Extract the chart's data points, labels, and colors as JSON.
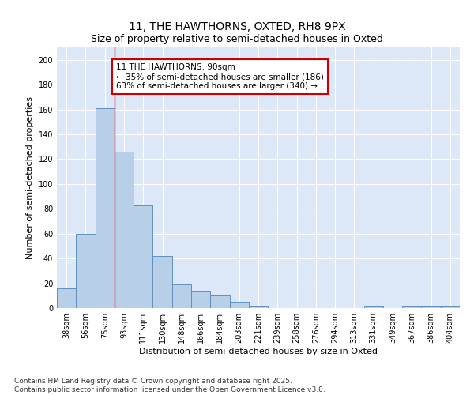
{
  "title": "11, THE HAWTHORNS, OXTED, RH8 9PX",
  "subtitle": "Size of property relative to semi-detached houses in Oxted",
  "xlabel": "Distribution of semi-detached houses by size in Oxted",
  "ylabel": "Number of semi-detached properties",
  "categories": [
    "38sqm",
    "56sqm",
    "75sqm",
    "93sqm",
    "111sqm",
    "130sqm",
    "148sqm",
    "166sqm",
    "184sqm",
    "203sqm",
    "221sqm",
    "239sqm",
    "258sqm",
    "276sqm",
    "294sqm",
    "313sqm",
    "331sqm",
    "349sqm",
    "367sqm",
    "386sqm",
    "404sqm"
  ],
  "values": [
    16,
    60,
    161,
    126,
    83,
    42,
    19,
    14,
    10,
    5,
    2,
    0,
    0,
    0,
    0,
    0,
    2,
    0,
    2,
    2,
    2
  ],
  "bar_color": "#b8cfe8",
  "bar_edge_color": "#6090c0",
  "red_line_x": 2.5,
  "annotation_text": "11 THE HAWTHORNS: 90sqm\n← 35% of semi-detached houses are smaller (186)\n63% of semi-detached houses are larger (340) →",
  "annotation_box_color": "#ffffff",
  "annotation_box_edge_color": "#cc0000",
  "ylim": [
    0,
    210
  ],
  "yticks": [
    0,
    20,
    40,
    60,
    80,
    100,
    120,
    140,
    160,
    180,
    200
  ],
  "background_color": "#dce8f8",
  "footer": "Contains HM Land Registry data © Crown copyright and database right 2025.\nContains public sector information licensed under the Open Government Licence v3.0.",
  "title_fontsize": 10,
  "subtitle_fontsize": 9,
  "xlabel_fontsize": 8,
  "ylabel_fontsize": 8,
  "tick_fontsize": 7,
  "annotation_fontsize": 7.5,
  "footer_fontsize": 6.5
}
